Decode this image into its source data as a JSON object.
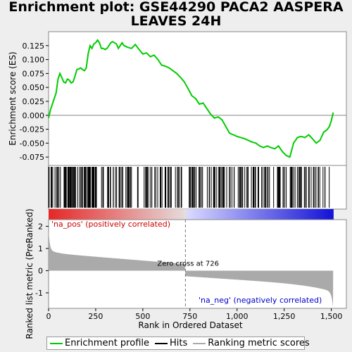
{
  "title_line1": "Enrichment plot: GSE44290 PACA2 AASPERA",
  "title_line2": "LEAVES 24H",
  "colors": {
    "es_line": "#00cc00",
    "hits": "#000000",
    "ranking": "#aaaaaa",
    "zero_line": "#888888",
    "pos_label": "#cc0000",
    "neg_label": "#0000cc"
  },
  "legend": [
    {
      "label": "Enrichment profile",
      "color": "#00cc00",
      "icon": "green-line"
    },
    {
      "label": "Hits",
      "color": "#000000",
      "icon": "black-line"
    },
    {
      "label": "Ranking metric scores",
      "color": "#aaaaaa",
      "icon": "gray-line"
    }
  ],
  "chart_data": [
    {
      "type": "line",
      "name": "enrichment_profile",
      "ylabel": "Enrichment score (ES)",
      "ylim": [
        -0.09,
        0.15
      ],
      "xlim": [
        0,
        1580
      ],
      "yticks": [
        -0.075,
        -0.05,
        -0.025,
        0.0,
        0.025,
        0.05,
        0.075,
        0.1,
        0.125
      ],
      "ytick_labels": [
        "-0.075",
        "-0.050",
        "-0.025",
        "0.000",
        "0.025",
        "0.050",
        "0.075",
        "0.100",
        "0.125"
      ],
      "x": [
        0,
        10,
        20,
        30,
        40,
        50,
        60,
        70,
        80,
        90,
        100,
        110,
        120,
        130,
        140,
        150,
        160,
        170,
        180,
        190,
        200,
        210,
        220,
        230,
        240,
        250,
        260,
        270,
        280,
        290,
        300,
        310,
        320,
        330,
        340,
        350,
        360,
        370,
        380,
        390,
        400,
        420,
        440,
        460,
        480,
        500,
        520,
        540,
        560,
        580,
        600,
        620,
        640,
        660,
        680,
        700,
        720,
        740,
        760,
        780,
        800,
        820,
        840,
        860,
        880,
        900,
        920,
        940,
        960,
        980,
        1000,
        1020,
        1040,
        1060,
        1080,
        1100,
        1120,
        1140,
        1160,
        1180,
        1200,
        1220,
        1240,
        1260,
        1280,
        1300,
        1320,
        1340,
        1360,
        1380,
        1400,
        1420,
        1440,
        1460,
        1470,
        1480,
        1490,
        1500,
        1510
      ],
      "y": [
        -0.005,
        0.01,
        0.02,
        0.03,
        0.04,
        0.065,
        0.075,
        0.068,
        0.06,
        0.058,
        0.065,
        0.063,
        0.058,
        0.06,
        0.07,
        0.082,
        0.083,
        0.085,
        0.082,
        0.08,
        0.085,
        0.11,
        0.125,
        0.12,
        0.128,
        0.13,
        0.135,
        0.13,
        0.12,
        0.12,
        0.118,
        0.12,
        0.125,
        0.13,
        0.132,
        0.13,
        0.128,
        0.12,
        0.125,
        0.13,
        0.125,
        0.122,
        0.12,
        0.127,
        0.118,
        0.11,
        0.112,
        0.105,
        0.108,
        0.1,
        0.09,
        0.088,
        0.085,
        0.08,
        0.075,
        0.068,
        0.06,
        0.048,
        0.035,
        0.03,
        0.02,
        0.022,
        0.012,
        0.002,
        -0.005,
        -0.003,
        -0.008,
        -0.02,
        -0.032,
        -0.035,
        -0.038,
        -0.04,
        -0.042,
        -0.045,
        -0.048,
        -0.05,
        -0.055,
        -0.058,
        -0.055,
        -0.058,
        -0.06,
        -0.055,
        -0.065,
        -0.072,
        -0.075,
        -0.05,
        -0.04,
        -0.038,
        -0.04,
        -0.035,
        -0.042,
        -0.05,
        -0.045,
        -0.03,
        -0.028,
        -0.025,
        -0.02,
        -0.01,
        0.005
      ]
    },
    {
      "type": "bar",
      "name": "ranked_list_metric",
      "xlabel": "Rank in Ordered Dataset",
      "ylabel": "Ranked list metric (PreRanked)",
      "ylim": [
        -1.7,
        2.3
      ],
      "xlim": [
        0,
        1580
      ],
      "yticks": [
        -1,
        0,
        1,
        2
      ],
      "xticks": [
        0,
        250,
        500,
        750,
        1000,
        1250,
        1500
      ],
      "xtick_labels": [
        "0",
        "250",
        "500",
        "750",
        "1,000",
        "1,250",
        "1,500"
      ],
      "zero_cross_rank": 726,
      "zero_cross_label": "Zero cross at 726",
      "pos_label": "'na_pos' (positively correlated)",
      "neg_label": "'na_neg' (negatively correlated)",
      "total_rank": 1510
    }
  ]
}
